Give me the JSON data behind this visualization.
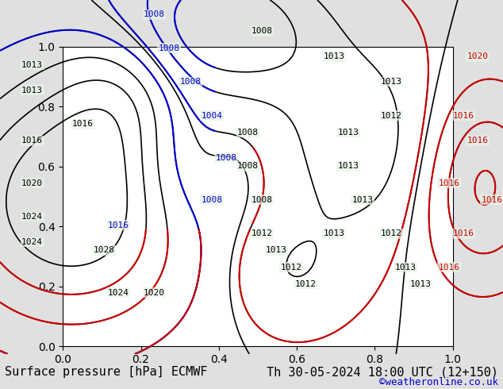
{
  "title_left": "Surface pressure [hPa] ECMWF",
  "title_right": "Th 30-05-2024 18:00 UTC (12+150)",
  "watermark": "©weatheronline.co.uk",
  "bg_color": "#e8f4e8",
  "land_color": "#c8d8c0",
  "sea_color": "#d0e8f0",
  "text_color_black": "#000000",
  "text_color_blue": "#0000cc",
  "text_color_red": "#cc0000",
  "bottom_bar_color": "#e0e0e0",
  "title_fontsize": 11,
  "watermark_color": "#0000cc"
}
